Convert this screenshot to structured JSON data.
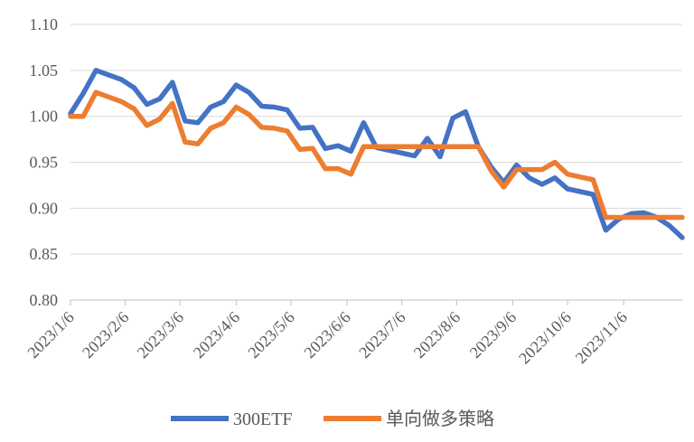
{
  "chart_data": {
    "type": "line",
    "title": "",
    "xlabel": "",
    "ylabel": "",
    "ylim": [
      0.8,
      1.1
    ],
    "yticks": [
      "0.80",
      "0.85",
      "0.90",
      "0.95",
      "1.00",
      "1.05",
      "1.10"
    ],
    "xtick_labels": [
      "2023/1/6",
      "2023/2/6",
      "2023/3/6",
      "2023/4/6",
      "2023/5/6",
      "2023/6/6",
      "2023/7/6",
      "2023/8/6",
      "2023/9/6",
      "2023/10/6",
      "2023/11/6"
    ],
    "grid": "horizontal",
    "legend_position": "bottom",
    "colors": {
      "300ETF": "#4472C4",
      "单向做多策略": "#ED7D31"
    },
    "series": [
      {
        "name": "300ETF",
        "values": [
          1.003,
          1.025,
          1.05,
          1.045,
          1.04,
          1.031,
          1.013,
          1.019,
          1.037,
          0.995,
          0.993,
          1.01,
          1.016,
          1.034,
          1.026,
          1.011,
          1.01,
          1.007,
          0.987,
          0.988,
          0.965,
          0.968,
          0.962,
          0.993,
          0.966,
          0.963,
          0.96,
          0.957,
          0.976,
          0.956,
          0.998,
          1.005,
          0.967,
          0.945,
          0.928,
          0.947,
          0.933,
          0.926,
          0.933,
          0.921,
          0.918,
          0.915,
          0.876,
          0.888,
          0.894,
          0.895,
          0.89,
          0.881,
          0.868
        ]
      },
      {
        "name": "单向做多策略",
        "values": [
          1.0,
          1.0,
          1.026,
          1.021,
          1.016,
          1.008,
          0.99,
          0.997,
          1.014,
          0.972,
          0.97,
          0.987,
          0.993,
          1.01,
          1.002,
          0.988,
          0.987,
          0.984,
          0.964,
          0.965,
          0.943,
          0.943,
          0.937,
          0.967,
          0.967,
          0.967,
          0.967,
          0.967,
          0.967,
          0.967,
          0.967,
          0.967,
          0.967,
          0.941,
          0.923,
          0.942,
          0.942,
          0.942,
          0.95,
          0.937,
          0.934,
          0.931,
          0.89,
          0.89,
          0.89,
          0.89,
          0.89,
          0.89,
          0.89
        ]
      }
    ]
  }
}
